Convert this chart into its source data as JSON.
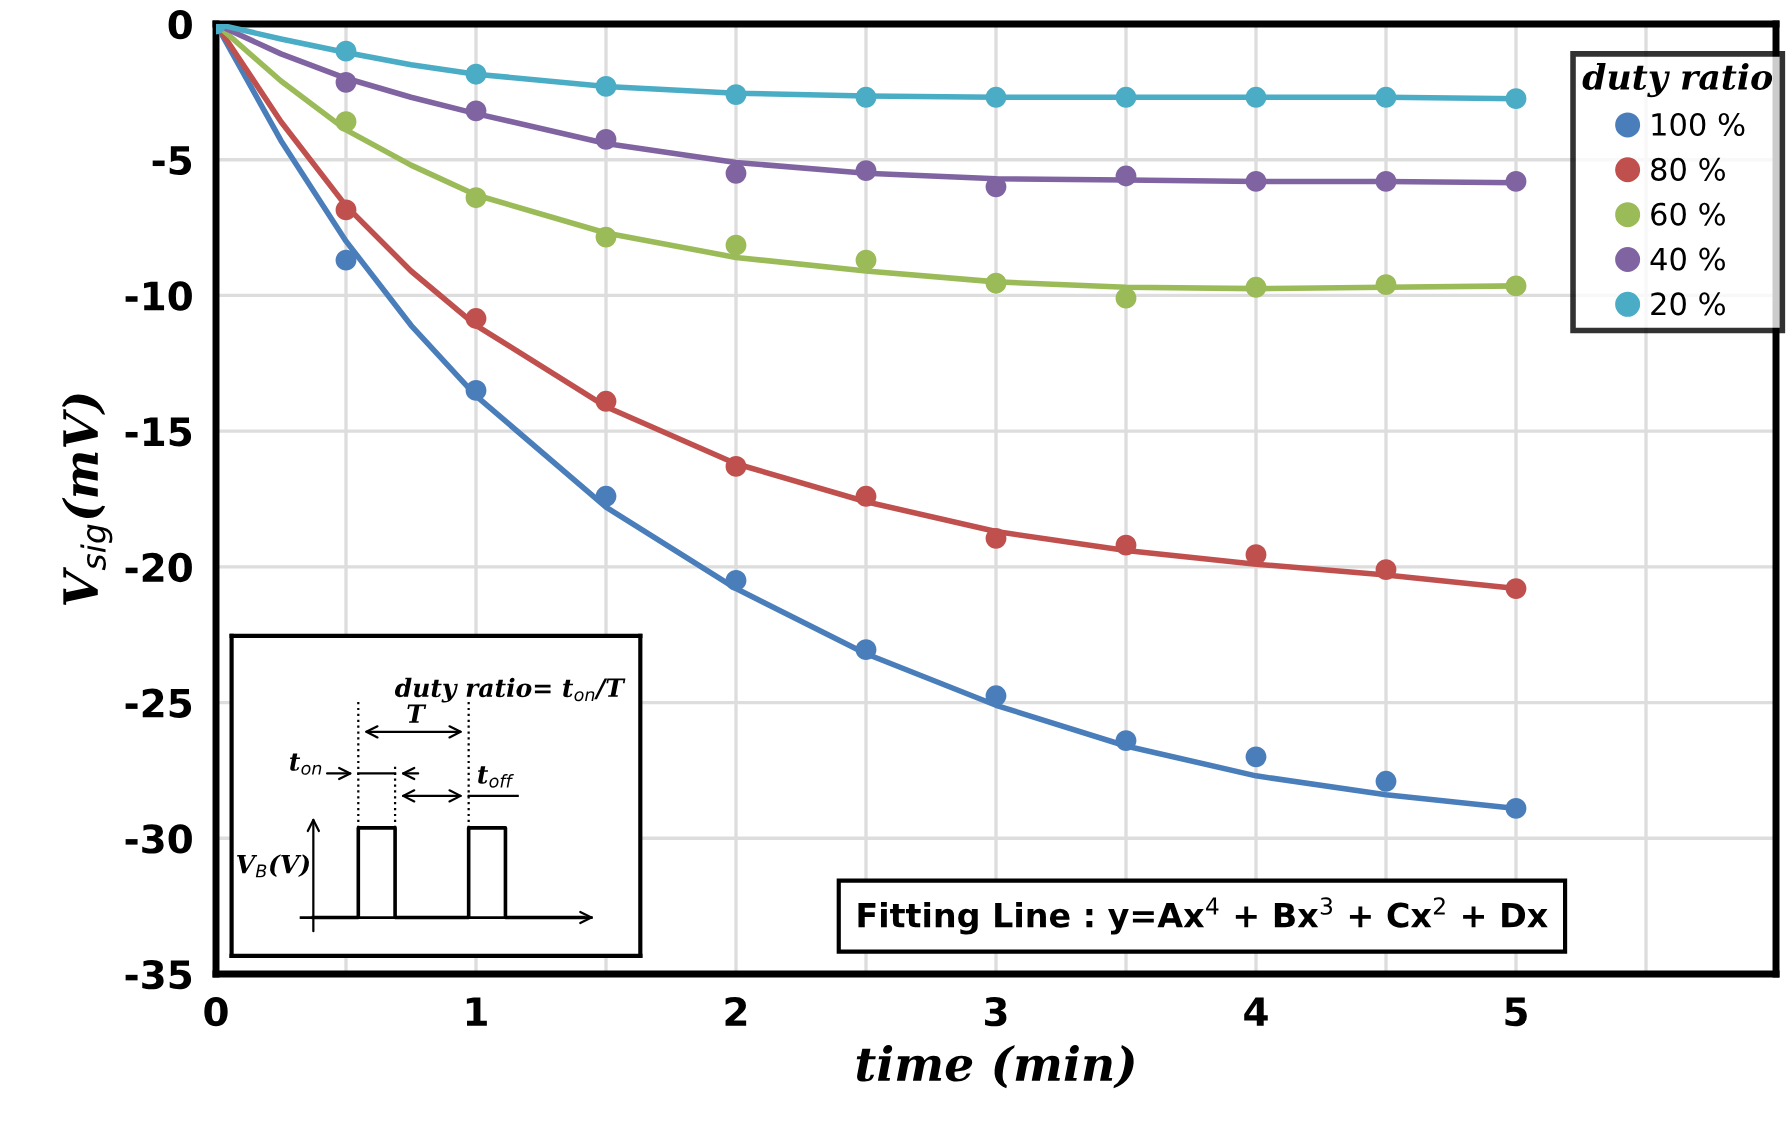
{
  "chart_data": {
    "type": "scatter",
    "xlabel": "time (min)",
    "ylabel": "V$_{sig}$(mV)",
    "legend_title": "duty ratio",
    "xlim": [
      0,
      6
    ],
    "ylim": [
      -35,
      0
    ],
    "xticks": [
      0,
      {
        "value": 0.5,
        "label": null
      },
      1,
      {
        "value": 1.5,
        "label": null
      },
      2,
      {
        "value": 2.5,
        "label": null
      },
      3,
      {
        "value": 3.5,
        "label": null
      },
      4,
      {
        "value": 4.5,
        "label": null
      },
      5,
      {
        "value": 5.5,
        "label": null
      },
      {
        "value": 6,
        "label": null
      }
    ],
    "yticks": [
      -35,
      -30,
      -25,
      -20,
      -15,
      -10,
      -5,
      0
    ],
    "grid": true,
    "legend": "top right",
    "marker": "circle",
    "x": [
      0,
      0.5,
      1,
      1.5,
      2,
      2.5,
      3,
      3.5,
      4,
      4.5,
      5
    ],
    "series": [
      {
        "name": "100 %",
        "color": "#4a7ebb",
        "values": [
          null,
          -8.7,
          -13.5,
          -17.4,
          -20.5,
          -23.05,
          -24.75,
          -26.4,
          -27.0,
          -27.9,
          -28.9
        ]
      },
      {
        "name": "80 %",
        "color": "#c0504d",
        "values": [
          null,
          -6.85,
          -10.85,
          -13.9,
          -16.3,
          -17.4,
          -18.95,
          -19.2,
          -19.55,
          -20.1,
          -20.8
        ]
      },
      {
        "name": "60 %",
        "color": "#9bbb59",
        "values": [
          null,
          -3.6,
          -6.4,
          -7.85,
          -8.15,
          -8.7,
          -9.55,
          -10.1,
          -9.7,
          -9.6,
          -9.65
        ]
      },
      {
        "name": "40 %",
        "color": "#8064a2",
        "values": [
          null,
          -2.15,
          -3.2,
          -4.25,
          -5.5,
          -5.4,
          -6.0,
          -5.6,
          -5.8,
          -5.8,
          -5.8
        ]
      },
      {
        "name": "20 %",
        "color": "#4bacc6",
        "values": [
          0,
          -1.0,
          -1.85,
          -2.3,
          -2.6,
          -2.7,
          -2.7,
          -2.7,
          -2.7,
          -2.7,
          -2.75
        ]
      },
      {
        "type": "line",
        "color": "#4a7ebb",
        "marker": "none",
        "x": [
          0,
          0.25,
          0.5,
          0.75,
          1,
          1.5,
          2,
          2.5,
          3,
          3.5,
          4,
          4.5,
          5
        ],
        "values": [
          0,
          -4.3,
          -8.0,
          -11.1,
          -13.7,
          -17.8,
          -20.8,
          -23.2,
          -25.1,
          -26.6,
          -27.7,
          -28.4,
          -28.9
        ]
      },
      {
        "type": "line",
        "color": "#c0504d",
        "marker": "none",
        "x": [
          0,
          0.25,
          0.5,
          0.75,
          1,
          1.5,
          2,
          2.5,
          3,
          3.5,
          4,
          4.5,
          5
        ],
        "values": [
          0,
          -3.6,
          -6.7,
          -9.1,
          -11.1,
          -14.1,
          -16.2,
          -17.6,
          -18.7,
          -19.4,
          -19.9,
          -20.3,
          -20.8
        ]
      },
      {
        "type": "line",
        "color": "#9bbb59",
        "marker": "none",
        "x": [
          0,
          0.25,
          0.5,
          0.75,
          1,
          1.5,
          2,
          2.5,
          3,
          3.5,
          4,
          4.5,
          5
        ],
        "values": [
          0,
          -2.1,
          -3.9,
          -5.2,
          -6.3,
          -7.7,
          -8.6,
          -9.1,
          -9.5,
          -9.7,
          -9.75,
          -9.7,
          -9.65
        ]
      },
      {
        "type": "line",
        "color": "#8064a2",
        "marker": "none",
        "x": [
          0,
          0.25,
          0.5,
          0.75,
          1,
          1.5,
          2,
          2.5,
          3,
          3.5,
          4,
          4.5,
          5
        ],
        "values": [
          0,
          -1.1,
          -2.0,
          -2.7,
          -3.3,
          -4.4,
          -5.1,
          -5.5,
          -5.7,
          -5.75,
          -5.8,
          -5.8,
          -5.85
        ]
      },
      {
        "type": "line",
        "color": "#4bacc6",
        "marker": "none",
        "x": [
          0,
          0.25,
          0.5,
          0.75,
          1,
          1.5,
          2,
          2.5,
          3,
          3.5,
          4,
          4.5,
          5
        ],
        "values": [
          0,
          -0.55,
          -1.05,
          -1.5,
          -1.85,
          -2.3,
          -2.55,
          -2.65,
          -2.7,
          -2.7,
          -2.7,
          -2.7,
          -2.75
        ]
      }
    ],
    "annotations": [
      "Fitting Line : y=Ax$^{4}$ + Bx$^{3}$ + Cx$^{2}$ + Dx",
      "duty ratio= t$_{on}$/T",
      "T",
      "t$_{on}$",
      "t$_{off}$",
      "V$_{B}$(V)"
    ]
  }
}
